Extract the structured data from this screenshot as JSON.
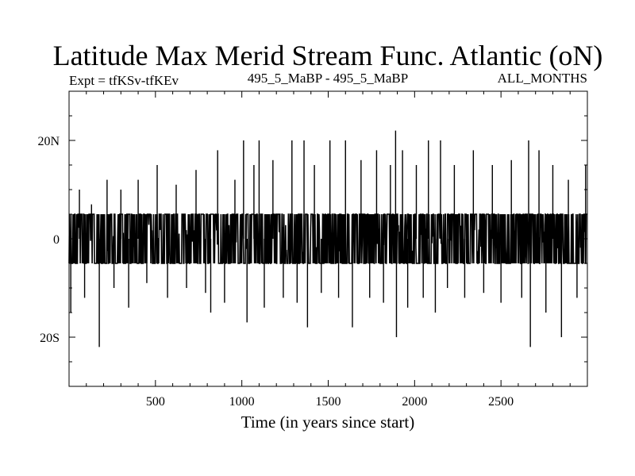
{
  "chart_data": {
    "type": "line",
    "title": "Latitude Max Merid Stream Func. Atlantic (oN)",
    "subtitle_left": "Expt = tfKSv-tfKEv",
    "subtitle_center": "495_5_MaBP - 495_5_MaBP",
    "subtitle_right": "ALL_MONTHS",
    "xlabel": "Time (in years since start)",
    "ylabel": "",
    "xlim": [
      0,
      3000
    ],
    "ylim": [
      -30,
      30
    ],
    "x_ticks": [
      500,
      1000,
      1500,
      2000,
      2500
    ],
    "x_tick_labels": [
      "500",
      "1000",
      "1500",
      "2000",
      "2500"
    ],
    "y_ticks": [
      -20,
      0,
      20
    ],
    "y_tick_labels": [
      "20S",
      "0",
      "20N"
    ],
    "baseline_band": [
      -5,
      5
    ],
    "spikes": [
      {
        "x": 10,
        "y": -15
      },
      {
        "x": 60,
        "y": 10
      },
      {
        "x": 90,
        "y": -12
      },
      {
        "x": 130,
        "y": 7
      },
      {
        "x": 175,
        "y": -22
      },
      {
        "x": 220,
        "y": 12
      },
      {
        "x": 260,
        "y": -10
      },
      {
        "x": 300,
        "y": 10
      },
      {
        "x": 345,
        "y": -14
      },
      {
        "x": 400,
        "y": 12
      },
      {
        "x": 450,
        "y": -9
      },
      {
        "x": 510,
        "y": 15
      },
      {
        "x": 570,
        "y": -12
      },
      {
        "x": 620,
        "y": 11
      },
      {
        "x": 680,
        "y": -10
      },
      {
        "x": 735,
        "y": 14
      },
      {
        "x": 790,
        "y": -11
      },
      {
        "x": 820,
        "y": -15
      },
      {
        "x": 860,
        "y": 18
      },
      {
        "x": 900,
        "y": -13
      },
      {
        "x": 960,
        "y": 12
      },
      {
        "x": 1010,
        "y": 20
      },
      {
        "x": 1030,
        "y": -17
      },
      {
        "x": 1070,
        "y": 15
      },
      {
        "x": 1100,
        "y": 20
      },
      {
        "x": 1130,
        "y": -14
      },
      {
        "x": 1180,
        "y": 16
      },
      {
        "x": 1240,
        "y": -12
      },
      {
        "x": 1290,
        "y": 20
      },
      {
        "x": 1320,
        "y": -13
      },
      {
        "x": 1360,
        "y": 20
      },
      {
        "x": 1380,
        "y": -18
      },
      {
        "x": 1420,
        "y": 15
      },
      {
        "x": 1460,
        "y": -11
      },
      {
        "x": 1510,
        "y": 20
      },
      {
        "x": 1560,
        "y": -12
      },
      {
        "x": 1600,
        "y": 20
      },
      {
        "x": 1640,
        "y": -18
      },
      {
        "x": 1690,
        "y": 16
      },
      {
        "x": 1740,
        "y": -12
      },
      {
        "x": 1780,
        "y": 18
      },
      {
        "x": 1820,
        "y": -13
      },
      {
        "x": 1860,
        "y": 15
      },
      {
        "x": 1890,
        "y": 22
      },
      {
        "x": 1895,
        "y": -20
      },
      {
        "x": 1930,
        "y": 18
      },
      {
        "x": 1960,
        "y": -14
      },
      {
        "x": 2010,
        "y": 15
      },
      {
        "x": 2050,
        "y": -12
      },
      {
        "x": 2080,
        "y": 20
      },
      {
        "x": 2120,
        "y": -15
      },
      {
        "x": 2150,
        "y": 20
      },
      {
        "x": 2190,
        "y": -10
      },
      {
        "x": 2230,
        "y": 15
      },
      {
        "x": 2290,
        "y": -12
      },
      {
        "x": 2340,
        "y": 18
      },
      {
        "x": 2400,
        "y": -11
      },
      {
        "x": 2450,
        "y": 15
      },
      {
        "x": 2500,
        "y": -13
      },
      {
        "x": 2560,
        "y": 16
      },
      {
        "x": 2620,
        "y": -12
      },
      {
        "x": 2660,
        "y": 20
      },
      {
        "x": 2670,
        "y": -22
      },
      {
        "x": 2720,
        "y": 18
      },
      {
        "x": 2760,
        "y": -15
      },
      {
        "x": 2800,
        "y": 15
      },
      {
        "x": 2850,
        "y": -20
      },
      {
        "x": 2890,
        "y": 12
      },
      {
        "x": 2940,
        "y": -12
      },
      {
        "x": 2990,
        "y": 15
      }
    ],
    "line_color": "#000000"
  }
}
